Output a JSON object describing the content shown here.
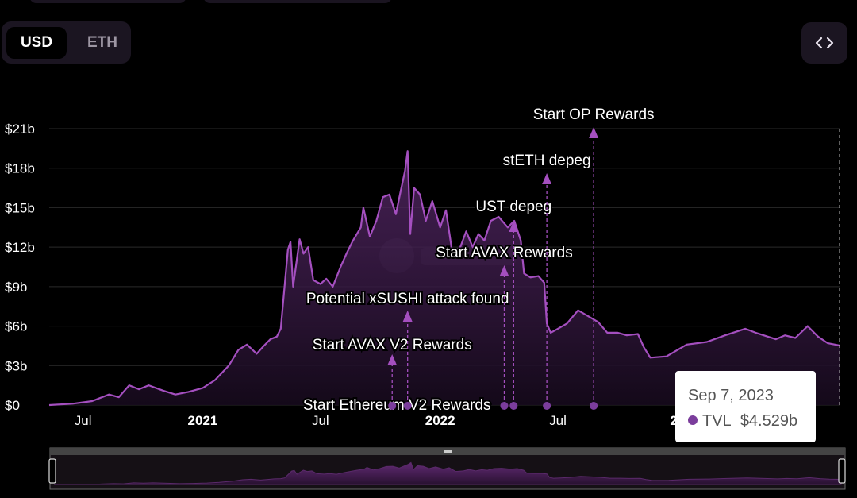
{
  "currency_toggle": {
    "options": [
      "USD",
      "ETH"
    ],
    "selected": "USD"
  },
  "embed_button": {
    "icon": "code-brackets-icon"
  },
  "tooltip": {
    "date": "Sep 7, 2023",
    "series": "TVL",
    "value": "$4.529b",
    "marker_color": "#7b3d9c"
  },
  "colors": {
    "line": "#a44fbf",
    "marker": "#7b3d9c",
    "grid": "#2a2a2a",
    "annotation": "#a44fbf"
  },
  "chart_data": {
    "type": "area",
    "y_ticks": [
      "$0",
      "$3b",
      "$6b",
      "$9b",
      "$12b",
      "$15b",
      "$18b",
      "$21b"
    ],
    "y_tick_values": [
      0,
      3,
      6,
      9,
      12,
      15,
      18,
      21
    ],
    "ylim": [
      0,
      21
    ],
    "y_unit": "billion USD",
    "x_ticks": [
      {
        "label": "Jul",
        "date": "2020-07-01",
        "bold": false
      },
      {
        "label": "2021",
        "date": "2021-01-01",
        "bold": true
      },
      {
        "label": "Jul",
        "date": "2021-07-01",
        "bold": false
      },
      {
        "label": "2022",
        "date": "2022-01-01",
        "bold": true
      },
      {
        "label": "Jul",
        "date": "2022-07-01",
        "bold": false
      },
      {
        "label": "20",
        "date": "2023-01-01",
        "bold": true
      }
    ],
    "xlim": [
      "2020-05-10",
      "2023-09-07"
    ],
    "grid": true,
    "legend": "none",
    "series": [
      {
        "name": "TVL",
        "points": [
          [
            "2020-05-10",
            0.0
          ],
          [
            "2020-06-15",
            0.1
          ],
          [
            "2020-07-15",
            0.3
          ],
          [
            "2020-08-10",
            0.8
          ],
          [
            "2020-08-25",
            0.6
          ],
          [
            "2020-09-10",
            1.5
          ],
          [
            "2020-09-25",
            1.2
          ],
          [
            "2020-10-10",
            1.5
          ],
          [
            "2020-11-01",
            1.1
          ],
          [
            "2020-11-20",
            0.8
          ],
          [
            "2020-12-10",
            1.0
          ],
          [
            "2021-01-01",
            1.3
          ],
          [
            "2021-01-20",
            1.9
          ],
          [
            "2021-02-10",
            3.0
          ],
          [
            "2021-02-25",
            4.2
          ],
          [
            "2021-03-10",
            4.6
          ],
          [
            "2021-03-25",
            3.9
          ],
          [
            "2021-04-05",
            4.5
          ],
          [
            "2021-04-15",
            5.0
          ],
          [
            "2021-04-25",
            5.2
          ],
          [
            "2021-05-01",
            5.8
          ],
          [
            "2021-05-05",
            8.0
          ],
          [
            "2021-05-12",
            11.8
          ],
          [
            "2021-05-16",
            12.4
          ],
          [
            "2021-05-20",
            9.0
          ],
          [
            "2021-05-30",
            12.6
          ],
          [
            "2021-06-05",
            11.5
          ],
          [
            "2021-06-12",
            12.0
          ],
          [
            "2021-06-20",
            9.5
          ],
          [
            "2021-07-01",
            9.2
          ],
          [
            "2021-07-10",
            9.6
          ],
          [
            "2021-07-20",
            9.0
          ],
          [
            "2021-08-01",
            10.5
          ],
          [
            "2021-08-10",
            11.5
          ],
          [
            "2021-08-20",
            12.5
          ],
          [
            "2021-09-01",
            13.5
          ],
          [
            "2021-09-05",
            15.0
          ],
          [
            "2021-09-15",
            12.8
          ],
          [
            "2021-09-25",
            14.0
          ],
          [
            "2021-10-05",
            15.8
          ],
          [
            "2021-10-15",
            16.0
          ],
          [
            "2021-10-25",
            14.5
          ],
          [
            "2021-11-01",
            16.2
          ],
          [
            "2021-11-08",
            17.8
          ],
          [
            "2021-11-12",
            19.3
          ],
          [
            "2021-11-16",
            13.0
          ],
          [
            "2021-11-22",
            16.5
          ],
          [
            "2021-12-01",
            16.0
          ],
          [
            "2021-12-10",
            14.0
          ],
          [
            "2021-12-20",
            15.5
          ],
          [
            "2022-01-01",
            13.5
          ],
          [
            "2022-01-10",
            14.8
          ],
          [
            "2022-01-20",
            11.5
          ],
          [
            "2022-02-01",
            12.0
          ],
          [
            "2022-02-10",
            13.2
          ],
          [
            "2022-02-20",
            12.0
          ],
          [
            "2022-03-01",
            13.0
          ],
          [
            "2022-03-10",
            12.5
          ],
          [
            "2022-03-20",
            14.0
          ],
          [
            "2022-04-01",
            14.3
          ],
          [
            "2022-04-15",
            13.5
          ],
          [
            "2022-04-25",
            14.0
          ],
          [
            "2022-05-05",
            12.5
          ],
          [
            "2022-05-10",
            10.0
          ],
          [
            "2022-05-20",
            9.7
          ],
          [
            "2022-06-01",
            9.8
          ],
          [
            "2022-06-10",
            9.3
          ],
          [
            "2022-06-14",
            6.2
          ],
          [
            "2022-06-20",
            5.5
          ],
          [
            "2022-07-01",
            5.8
          ],
          [
            "2022-07-15",
            6.2
          ],
          [
            "2022-08-01",
            7.2
          ],
          [
            "2022-08-15",
            6.8
          ],
          [
            "2022-09-01",
            6.3
          ],
          [
            "2022-09-15",
            5.5
          ],
          [
            "2022-10-01",
            5.5
          ],
          [
            "2022-10-15",
            5.3
          ],
          [
            "2022-11-01",
            5.4
          ],
          [
            "2022-11-10",
            4.4
          ],
          [
            "2022-11-20",
            3.6
          ],
          [
            "2022-12-15",
            3.7
          ],
          [
            "2023-01-15",
            4.6
          ],
          [
            "2023-02-15",
            4.8
          ],
          [
            "2023-03-15",
            5.3
          ],
          [
            "2023-04-15",
            5.8
          ],
          [
            "2023-05-01",
            5.5
          ],
          [
            "2023-06-01",
            5.0
          ],
          [
            "2023-06-15",
            5.3
          ],
          [
            "2023-07-01",
            5.1
          ],
          [
            "2023-07-20",
            6.0
          ],
          [
            "2023-08-05",
            5.2
          ],
          [
            "2023-08-20",
            4.7
          ],
          [
            "2023-09-07",
            4.529
          ]
        ]
      }
    ],
    "annotations": [
      {
        "label": "Start Ethereum V2 Rewards",
        "date": "2021-10-29"
      },
      {
        "label": "Start AVAX V2 Rewards",
        "date": "2021-10-29"
      },
      {
        "label": "Potential xSUSHI attack found",
        "date": "2021-11-12"
      },
      {
        "label": "Start AVAX Rewards",
        "date": "2022-04-12"
      },
      {
        "label": "UST depeg",
        "date": "2022-04-24"
      },
      {
        "label": "stETH depeg",
        "date": "2022-06-14"
      },
      {
        "label": "Start OP Rewards",
        "date": "2022-08-25"
      }
    ]
  }
}
